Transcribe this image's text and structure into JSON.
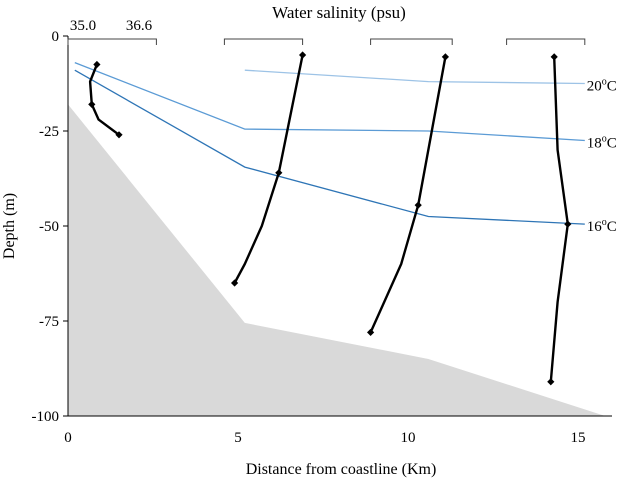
{
  "chart_data": {
    "type": "line",
    "title": "Water salinity (psu)",
    "xlabel": "Distance from coastline (Km)",
    "ylabel": "Depth (m)",
    "xlim": [
      0,
      16
    ],
    "ylim": [
      -100,
      0
    ],
    "x_ticks": [
      0,
      5,
      10,
      15
    ],
    "y_ticks": [
      0,
      -25,
      -50,
      -75,
      -100
    ],
    "grid": false,
    "colors": {
      "seabed": "#d9d9d9",
      "profile": "#000000",
      "isotherm_20": "#9dc3e6",
      "isotherm_18": "#5b9bd5",
      "isotherm_16": "#2e75b6"
    },
    "salinity_scale": {
      "min_label": "35.0",
      "max_label": "36.6",
      "brackets": [
        {
          "x_start": 0,
          "x_end": 2.6
        },
        {
          "x_start": 4.6,
          "x_end": 6.9
        },
        {
          "x_start": 8.9,
          "x_end": 11.3
        },
        {
          "x_start": 12.9,
          "x_end": 15.2
        }
      ]
    },
    "seabed": {
      "x": [
        0,
        5.2,
        10.6,
        15.8,
        15.8,
        0
      ],
      "y": [
        -18,
        -75.5,
        -85,
        -100,
        -100,
        -100
      ]
    },
    "isotherms": [
      {
        "name": "20",
        "unit_sup": "o",
        "unit": "C",
        "x": [
          5.2,
          10.6,
          15.2
        ],
        "y": [
          -9,
          -12,
          -12.5
        ]
      },
      {
        "name": "18",
        "unit_sup": "o",
        "unit": "C",
        "x": [
          0.2,
          5.2,
          10.6,
          15.2
        ],
        "y": [
          -7,
          -24.5,
          -25,
          -27.5
        ]
      },
      {
        "name": "16",
        "unit_sup": "o",
        "unit": "C",
        "x": [
          0.2,
          5.2,
          10.6,
          15.2
        ],
        "y": [
          -9,
          -34.5,
          -47.5,
          -49.5
        ]
      }
    ],
    "profiles": [
      {
        "x": [
          0.85,
          0.65,
          0.7,
          0.9,
          1.5
        ],
        "y": [
          -7.5,
          -12,
          -18,
          -22,
          -26
        ],
        "markers": [
          0,
          2,
          4
        ]
      },
      {
        "x": [
          6.9,
          6.2,
          5.7,
          5.2,
          4.9
        ],
        "y": [
          -5,
          -36,
          -50,
          -60,
          -65
        ],
        "markers": [
          0,
          1,
          4
        ]
      },
      {
        "x": [
          11.1,
          10.3,
          9.8,
          9.2,
          8.9
        ],
        "y": [
          -5.5,
          -44.5,
          -60,
          -72,
          -78
        ],
        "markers": [
          0,
          1,
          4
        ]
      },
      {
        "x": [
          14.3,
          14.4,
          14.7,
          14.4,
          14.2
        ],
        "y": [
          -5.5,
          -30,
          -49.5,
          -70,
          -91
        ],
        "markers": [
          0,
          2,
          4
        ]
      }
    ]
  }
}
